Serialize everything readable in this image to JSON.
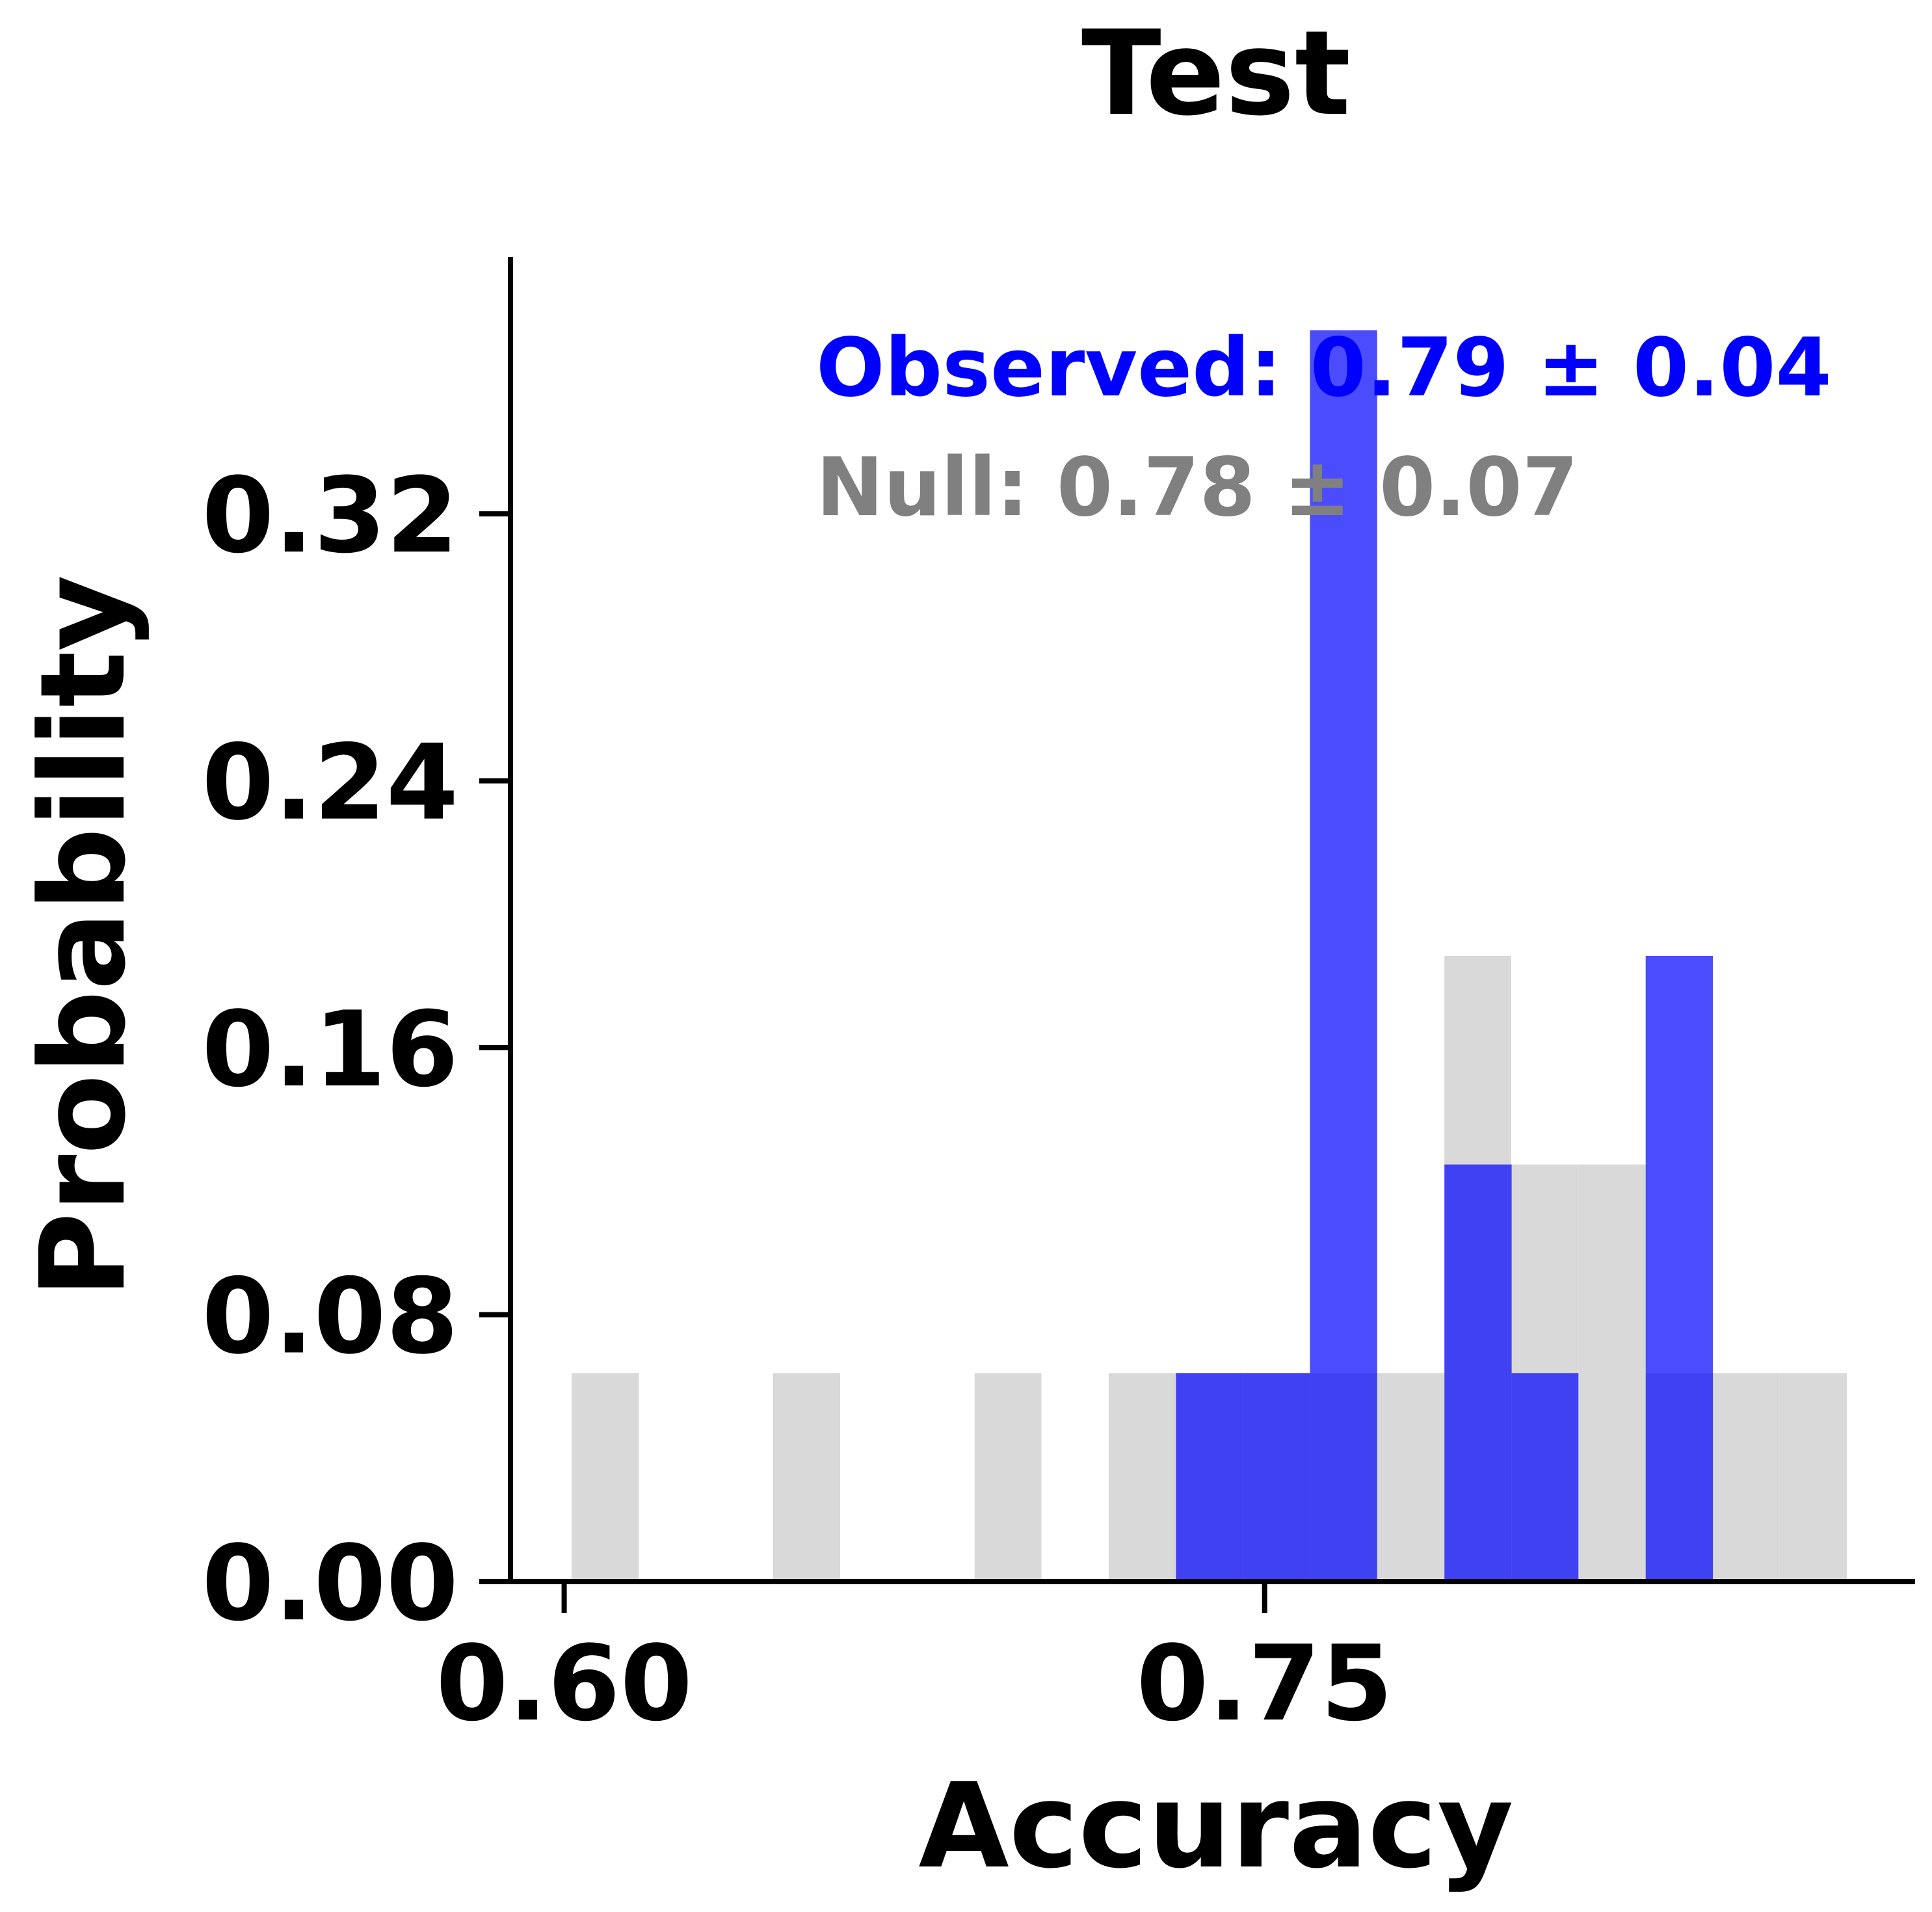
{
  "chart_data": {
    "type": "bar",
    "title": "Test",
    "xlabel": "Accuracy",
    "ylabel": "Probability",
    "xlim": [
      0.5885,
      0.8893
    ],
    "ylim": [
      0,
      0.397
    ],
    "xticks": [
      0.6,
      0.75
    ],
    "xtick_labels": [
      "0.60",
      "0.75"
    ],
    "yticks": [
      0,
      0.08,
      0.16,
      0.24,
      0.32
    ],
    "ytick_labels": [
      "0.00",
      "0.08",
      "0.16",
      "0.24",
      "0.32"
    ],
    "grid": false,
    "series": [
      {
        "name": "Null",
        "color": "#d9d9d9",
        "bin_edges": [
          0.6016,
          0.616,
          0.6304,
          0.6447,
          0.6591,
          0.6735,
          0.6879,
          0.7022,
          0.7166,
          0.731,
          0.7453,
          0.7597,
          0.7741,
          0.7885,
          0.8028,
          0.8172,
          0.8316,
          0.846,
          0.8603,
          0.8747
        ],
        "values": [
          0.0625,
          0,
          0,
          0.0625,
          0,
          0,
          0.0625,
          0,
          0.0625,
          0.0625,
          0.0625,
          0.0625,
          0.0625,
          0.1875,
          0.125,
          0.125,
          0.0625,
          0.0625,
          0.0625
        ]
      },
      {
        "name": "Observed",
        "color": "#0000ff",
        "bin_edges": [
          0.731,
          0.7454,
          0.7597,
          0.7741,
          0.7885,
          0.8029,
          0.8172,
          0.8316,
          0.846
        ],
        "values": [
          0.0625,
          0.0625,
          0.375,
          0,
          0.125,
          0.0625,
          0,
          0.1875
        ]
      }
    ],
    "annotations": [
      {
        "text": "Observed: 0.79 ± 0.04",
        "color": "#0000ff"
      },
      {
        "text": "Null: 0.78 ± 0.07",
        "color": "#808080"
      }
    ]
  }
}
